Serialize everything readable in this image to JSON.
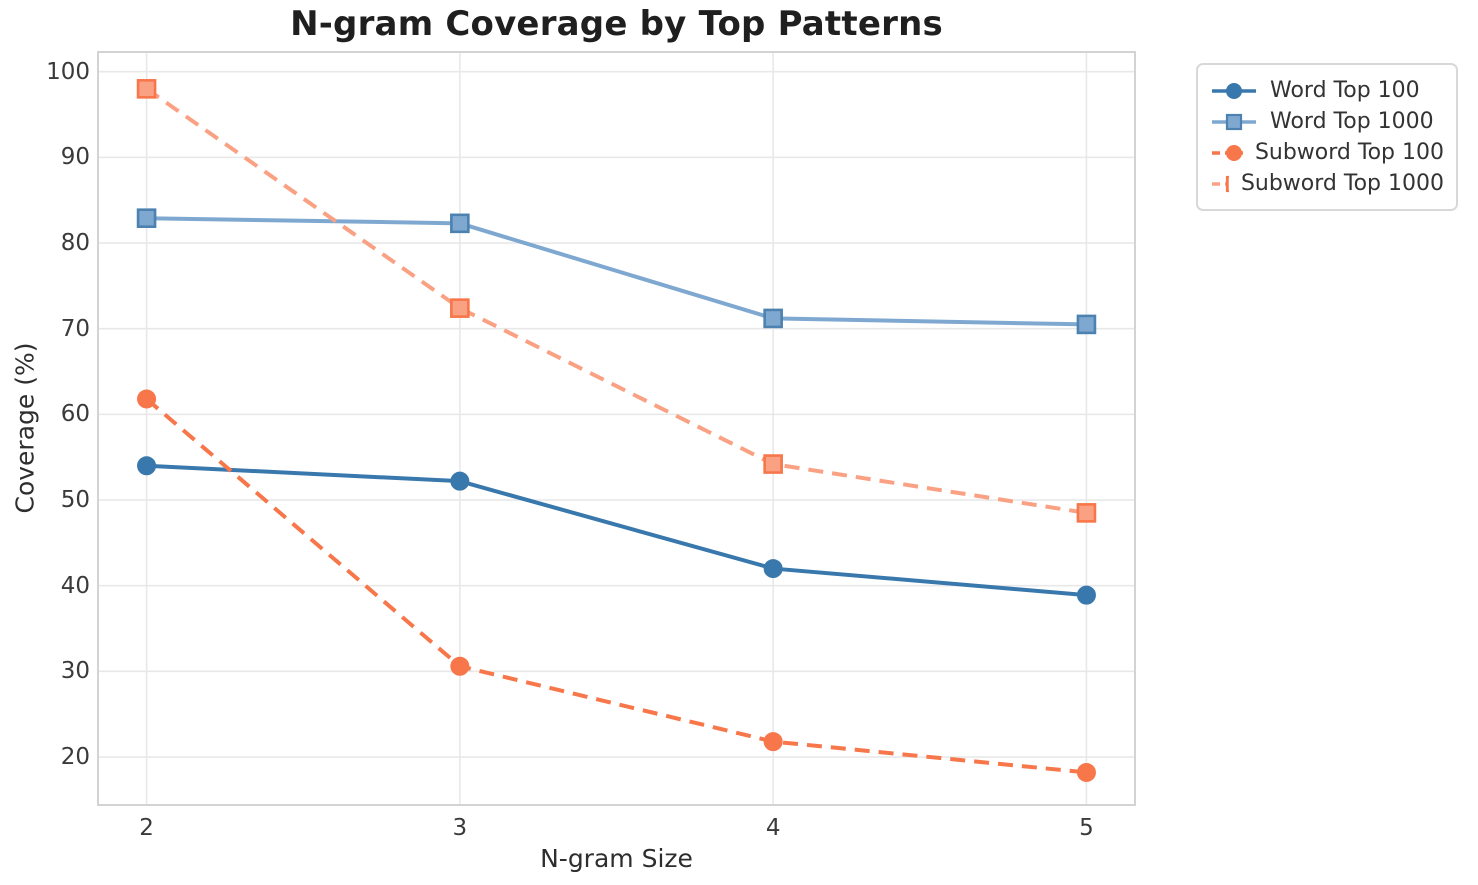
{
  "chart_data": {
    "type": "line",
    "title": "N-gram Coverage by Top Patterns",
    "xlabel": "N-gram Size",
    "ylabel": "Coverage (%)",
    "x": [
      2,
      3,
      4,
      5
    ],
    "xtick_labels": [
      "2",
      "3",
      "4",
      "5"
    ],
    "ytick_values": [
      20,
      30,
      40,
      50,
      60,
      70,
      80,
      90,
      100
    ],
    "xlim": [
      1.845,
      5.155
    ],
    "ylim": [
      14.4,
      102.3
    ],
    "grid": true,
    "grid_color": "#e8e8e8",
    "frame_color": "#d3d3d3",
    "legend_position": "outside-upper-right",
    "series": [
      {
        "name": "Word Top 100",
        "marker": "circle",
        "line_style": "solid",
        "color": "#3978ac",
        "edge_color": "#3978ac",
        "values": [
          54.0,
          52.2,
          42.0,
          38.9
        ]
      },
      {
        "name": "Word Top 1000",
        "marker": "square",
        "line_style": "solid",
        "color": "#7fa8d1",
        "edge_color": "#4d82b0",
        "values": [
          82.9,
          82.3,
          71.2,
          70.5
        ]
      },
      {
        "name": "Subword Top 100",
        "marker": "circle",
        "line_style": "dashed",
        "color": "#f7764a",
        "edge_color": "#f7764a",
        "values": [
          61.8,
          30.6,
          21.8,
          18.2
        ]
      },
      {
        "name": "Subword Top 1000",
        "marker": "square",
        "line_style": "dashed",
        "color": "#fba183",
        "edge_color": "#f7764a",
        "values": [
          98.0,
          72.4,
          54.2,
          48.5
        ]
      }
    ]
  }
}
